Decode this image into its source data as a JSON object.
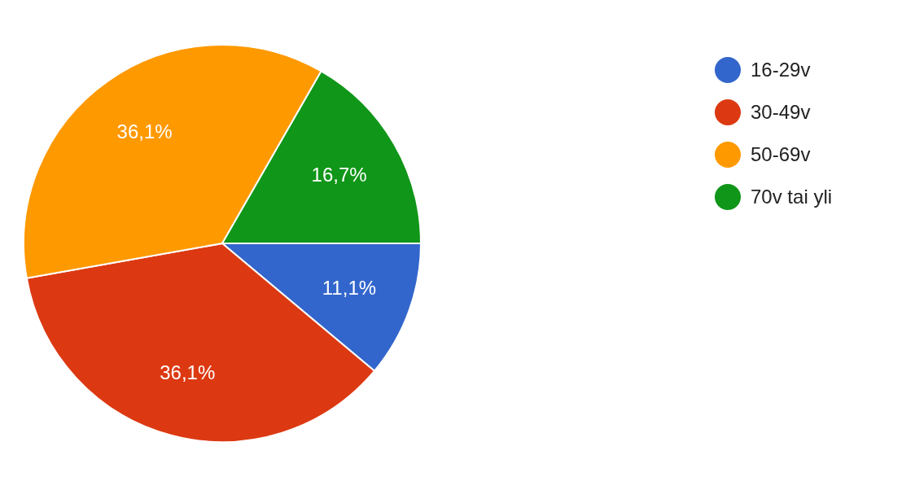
{
  "chart_data": {
    "type": "pie",
    "categories": [
      "16-29v",
      "30-49v",
      "50-69v",
      "70v tai yli"
    ],
    "values": [
      11.1,
      36.1,
      36.1,
      16.7
    ],
    "colors": [
      "#3366cc",
      "#dc3912",
      "#ff9900",
      "#109618"
    ],
    "value_labels": [
      "11,1%",
      "36,1%",
      "36,1%",
      "16,7%"
    ],
    "legend": "top right"
  }
}
